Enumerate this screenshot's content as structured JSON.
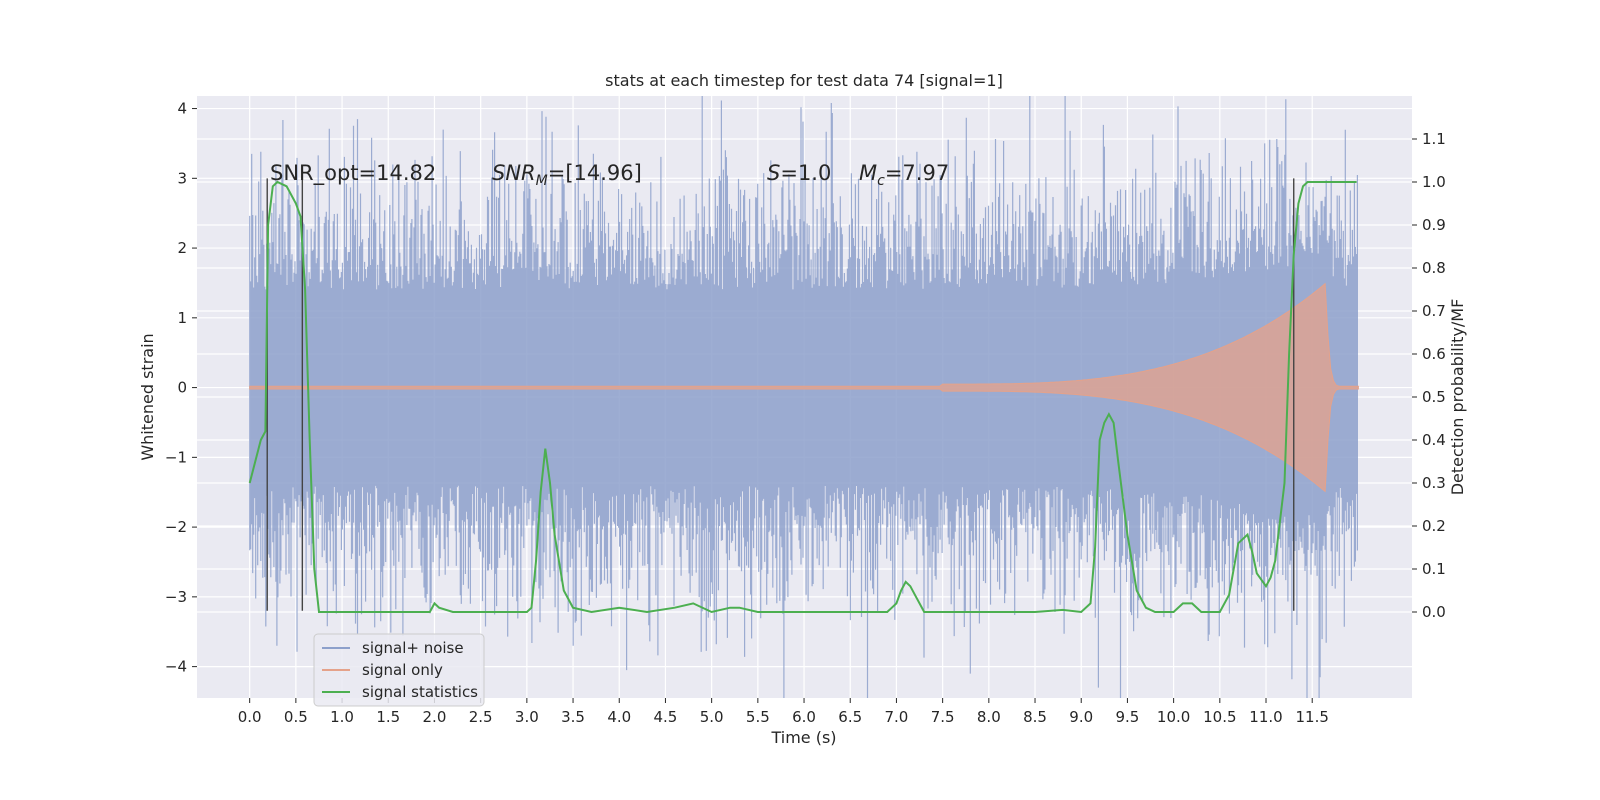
{
  "chart_data": {
    "type": "line",
    "title": "stats at each timestep for test data 74 [signal=1]",
    "xlabel": "Time (s)",
    "ylabel": "Whitened strain",
    "y2label": "Detection probability/MF",
    "xlim": [
      -0.57,
      12.58
    ],
    "ylim": [
      -4.45,
      4.18
    ],
    "y2lim": [
      -0.2,
      1.2
    ],
    "xticks": [
      "0.0",
      "0.5",
      "1.0",
      "1.5",
      "2.0",
      "2.5",
      "3.0",
      "3.5",
      "4.0",
      "4.5",
      "5.0",
      "5.5",
      "6.0",
      "6.5",
      "7.0",
      "7.5",
      "8.0",
      "8.5",
      "9.0",
      "9.5",
      "10.0",
      "10.5",
      "11.0",
      "11.5"
    ],
    "yticks": [
      "4",
      "3",
      "2",
      "1",
      "0",
      "−1",
      "−2",
      "−3",
      "−4"
    ],
    "y2ticks": [
      "1.1",
      "1.0",
      "0.9",
      "0.8",
      "0.7",
      "0.6",
      "0.5",
      "0.4",
      "0.3",
      "0.2",
      "0.1",
      "0.0"
    ],
    "grid": true,
    "legend_position": "lower-left",
    "annotations": {
      "snr_opt": "SNR_opt=14.82",
      "snr_mf": "=[14.96]",
      "s_val": "=1.0",
      "mc_val": "=7.97"
    },
    "vlines_x": [
      0.19,
      0.57,
      11.3
    ],
    "series": [
      {
        "name": "signal+ noise",
        "color": "#8da0cb",
        "description_envelope": {
          "t_start": 0.0,
          "t_end": 12.0,
          "typical_max": 2.3,
          "typical_min": -2.3
        }
      },
      {
        "name": "signal only",
        "color": "#e5a28a",
        "chirp": {
          "t_start": 7.5,
          "t_peak": 11.65,
          "t_end": 12.0,
          "peak_amp": 1.5
        }
      },
      {
        "name": "signal statistics",
        "color": "#4caf50",
        "x": [
          0.0,
          0.12,
          0.17,
          0.2,
          0.25,
          0.3,
          0.4,
          0.5,
          0.55,
          0.6,
          0.65,
          0.7,
          0.75,
          0.8,
          0.9,
          1.0,
          1.3,
          1.5,
          1.8,
          1.95,
          2.0,
          2.05,
          2.2,
          2.5,
          3.0,
          3.05,
          3.1,
          3.15,
          3.2,
          3.25,
          3.3,
          3.4,
          3.5,
          3.7,
          4.0,
          4.3,
          4.6,
          4.8,
          5.0,
          5.2,
          5.3,
          5.5,
          6.0,
          6.5,
          6.9,
          7.0,
          7.05,
          7.1,
          7.15,
          7.2,
          7.3,
          7.5,
          8.0,
          8.5,
          8.8,
          9.0,
          9.1,
          9.15,
          9.2,
          9.25,
          9.3,
          9.35,
          9.4,
          9.5,
          9.6,
          9.7,
          9.8,
          10.0,
          10.1,
          10.2,
          10.3,
          10.5,
          10.6,
          10.7,
          10.8,
          10.85,
          10.9,
          11.0,
          11.05,
          11.1,
          11.2,
          11.25,
          11.3,
          11.35,
          11.4,
          11.45,
          11.5,
          11.6,
          11.7,
          11.8,
          11.9,
          11.98
        ],
        "y": [
          0.3,
          0.4,
          0.42,
          0.9,
          0.99,
          1.0,
          0.99,
          0.95,
          0.92,
          0.75,
          0.4,
          0.1,
          0.0,
          0.0,
          0.0,
          0.0,
          0.0,
          0.0,
          0.0,
          0.0,
          0.02,
          0.01,
          0.0,
          0.0,
          0.0,
          0.01,
          0.12,
          0.28,
          0.38,
          0.3,
          0.18,
          0.05,
          0.01,
          0.0,
          0.01,
          0.0,
          0.01,
          0.02,
          0.0,
          0.01,
          0.01,
          0.0,
          0.0,
          0.0,
          0.0,
          0.02,
          0.05,
          0.07,
          0.06,
          0.04,
          0.0,
          0.0,
          0.0,
          0.0,
          0.005,
          0.0,
          0.02,
          0.15,
          0.4,
          0.44,
          0.46,
          0.44,
          0.35,
          0.18,
          0.05,
          0.01,
          0.0,
          0.0,
          0.02,
          0.02,
          0.0,
          0.0,
          0.04,
          0.16,
          0.18,
          0.14,
          0.09,
          0.06,
          0.08,
          0.12,
          0.3,
          0.6,
          0.83,
          0.95,
          0.99,
          1.0,
          1.0,
          1.0,
          1.0,
          1.0,
          1.0,
          1.0
        ]
      }
    ]
  }
}
